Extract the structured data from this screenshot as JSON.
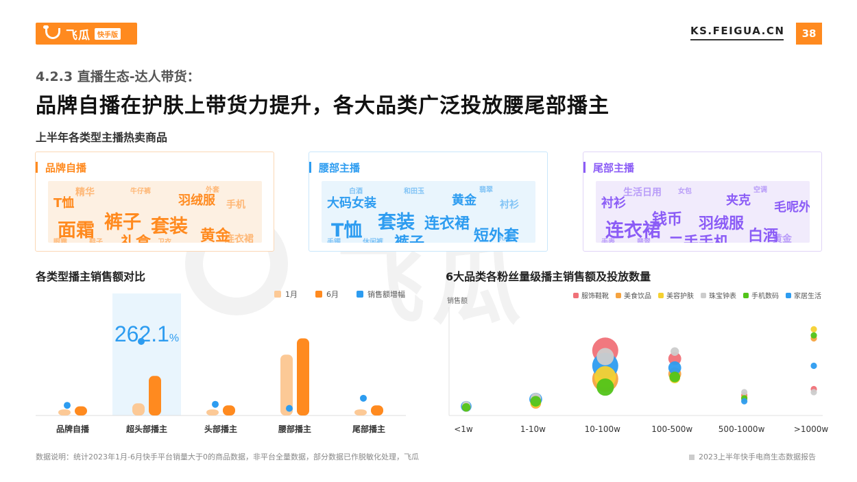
{
  "header": {
    "logo_text": "飞瓜",
    "logo_badge": "快手版",
    "site": "KS.FEIGUA.CN",
    "page_number": "38"
  },
  "section_title": "4.2.3 直播生态-达人带货：",
  "headline": "品牌自播在护肤上带货力提升，各大品类广泛投放腰尾部播主",
  "wordcloud_section_title": "上半年各类型主播热卖商品",
  "wordclouds": [
    {
      "title": "品牌自播",
      "color": "#ff8a1f",
      "words": [
        {
          "text": "面霜",
          "weight": 5
        },
        {
          "text": "裤子",
          "weight": 5
        },
        {
          "text": "套装",
          "weight": 5
        },
        {
          "text": "黄金",
          "weight": 4
        },
        {
          "text": "礼盒",
          "weight": 4
        },
        {
          "text": "T恤",
          "weight": 3
        },
        {
          "text": "羽绒服",
          "weight": 3
        },
        {
          "text": "手机",
          "weight": 2
        },
        {
          "text": "连衣裙",
          "weight": 2
        },
        {
          "text": "精华",
          "weight": 2
        },
        {
          "text": "牛仔裤",
          "weight": 1
        },
        {
          "text": "外套",
          "weight": 1
        },
        {
          "text": "眼霜",
          "weight": 1
        },
        {
          "text": "鞋子",
          "weight": 1
        },
        {
          "text": "卫衣",
          "weight": 1
        }
      ]
    },
    {
      "title": "腰部主播",
      "color": "#2d9cf0",
      "words": [
        {
          "text": "T恤",
          "weight": 5
        },
        {
          "text": "套装",
          "weight": 5
        },
        {
          "text": "连衣裙",
          "weight": 4
        },
        {
          "text": "短外套",
          "weight": 4
        },
        {
          "text": "裤子",
          "weight": 4
        },
        {
          "text": "大码女装",
          "weight": 3
        },
        {
          "text": "黄金",
          "weight": 3
        },
        {
          "text": "衬衫",
          "weight": 2
        },
        {
          "text": "礼盒",
          "weight": 1
        },
        {
          "text": "白酒",
          "weight": 1
        },
        {
          "text": "和田玉",
          "weight": 1
        },
        {
          "text": "翡翠",
          "weight": 1
        },
        {
          "text": "手镯",
          "weight": 1
        },
        {
          "text": "休闲裤",
          "weight": 1
        }
      ]
    },
    {
      "title": "尾部主播",
      "color": "#8b5cf6",
      "words": [
        {
          "text": "连衣裙",
          "weight": 5
        },
        {
          "text": "钱币",
          "weight": 4
        },
        {
          "text": "羽绒服",
          "weight": 4
        },
        {
          "text": "白酒",
          "weight": 4
        },
        {
          "text": "二手手机",
          "weight": 4
        },
        {
          "text": "衬衫",
          "weight": 3
        },
        {
          "text": "夹克",
          "weight": 3
        },
        {
          "text": "毛呢外套",
          "weight": 3
        },
        {
          "text": "黄金",
          "weight": 2
        },
        {
          "text": "生活日用",
          "weight": 2
        },
        {
          "text": "女包",
          "weight": 1
        },
        {
          "text": "空调",
          "weight": 1
        },
        {
          "text": "手表",
          "weight": 1
        },
        {
          "text": "翡翠",
          "weight": 1
        }
      ]
    }
  ],
  "bar_chart_title": "各类型播主销售额对比",
  "bubble_chart_title": "6大品类各粉丝量级播主销售额及投放数量",
  "chart_data": [
    {
      "type": "bar",
      "title": "各类型播主销售额对比",
      "categories": [
        "品牌自播",
        "超头部播主",
        "头部播主",
        "腰部播主",
        "尾部播主"
      ],
      "series": [
        {
          "name": "1月",
          "color": "#fcc996",
          "values": [
            6,
            12,
            6,
            60,
            6
          ]
        },
        {
          "name": "6月",
          "color": "#ff8a1f",
          "values": [
            9,
            39,
            10,
            76,
            10
          ]
        },
        {
          "name": "销售额增幅",
          "color": "#2d9cf0",
          "kind": "dot",
          "values": [
            10,
            73,
            11,
            7,
            17
          ]
        }
      ],
      "ylim": [
        0,
        100
      ],
      "highlight": {
        "category": "超头部播主",
        "value_text": "262.1",
        "unit": "%"
      },
      "grid": false,
      "legend": "top-right"
    },
    {
      "type": "scatter",
      "title": "6大品类各粉丝量级播主销售额及投放数量",
      "ylabel": "销售额",
      "categories": [
        "<1w",
        "1-10w",
        "10-100w",
        "100-500w",
        "500-1000w",
        ">1000w"
      ],
      "ylim": [
        0,
        100
      ],
      "grid": false,
      "legend": "top-right",
      "series": [
        {
          "name": "服饰鞋靴",
          "color": "#f07178",
          "points": [
            [
              0,
              9,
              2
            ],
            [
              1,
              15,
              3
            ],
            [
              2,
              64,
              10
            ],
            [
              3,
              56,
              4
            ],
            [
              4,
              20,
              1
            ],
            [
              5,
              26,
              1
            ]
          ]
        },
        {
          "name": "美食饮品",
          "color": "#f5a340",
          "points": [
            [
              0,
              8,
              2
            ],
            [
              1,
              12,
              3
            ],
            [
              2,
              36,
              10
            ],
            [
              3,
              41,
              4
            ],
            [
              4,
              18,
              1
            ],
            [
              5,
              76,
              1
            ]
          ]
        },
        {
          "name": "美容护肤",
          "color": "#f5d130",
          "points": [
            [
              0,
              9,
              2
            ],
            [
              1,
              13,
              3
            ],
            [
              2,
              38,
              8
            ],
            [
              3,
              37,
              3
            ],
            [
              4,
              16,
              1
            ],
            [
              5,
              85,
              1
            ]
          ]
        },
        {
          "name": "珠宝钟表",
          "color": "#cccccc",
          "points": [
            [
              0,
              10,
              2
            ],
            [
              1,
              17,
              3
            ],
            [
              2,
              58,
              6
            ],
            [
              3,
              63,
              2
            ],
            [
              4,
              23,
              1
            ],
            [
              5,
              23,
              1
            ]
          ]
        },
        {
          "name": "手机数码",
          "color": "#52c41a",
          "points": [
            [
              0,
              8,
              2
            ],
            [
              1,
              14,
              3
            ],
            [
              2,
              28,
              6
            ],
            [
              3,
              38,
              3
            ],
            [
              4,
              17,
              1
            ],
            [
              5,
              79,
              1
            ]
          ]
        },
        {
          "name": "家居生活",
          "color": "#2d9cf0",
          "points": [
            [
              0,
              9,
              3
            ],
            [
              1,
              16,
              4
            ],
            [
              2,
              49,
              10
            ],
            [
              3,
              47,
              4
            ],
            [
              4,
              14,
              1
            ],
            [
              5,
              49,
              1
            ]
          ]
        }
      ]
    }
  ],
  "footer": {
    "note": "数据说明：统计2023年1月-6月快手平台销量大于0的商品数据，非平台全量数据，部分数据已作脱敏化处理，飞瓜",
    "report": "2023上半年快手电商生态数据报告"
  }
}
